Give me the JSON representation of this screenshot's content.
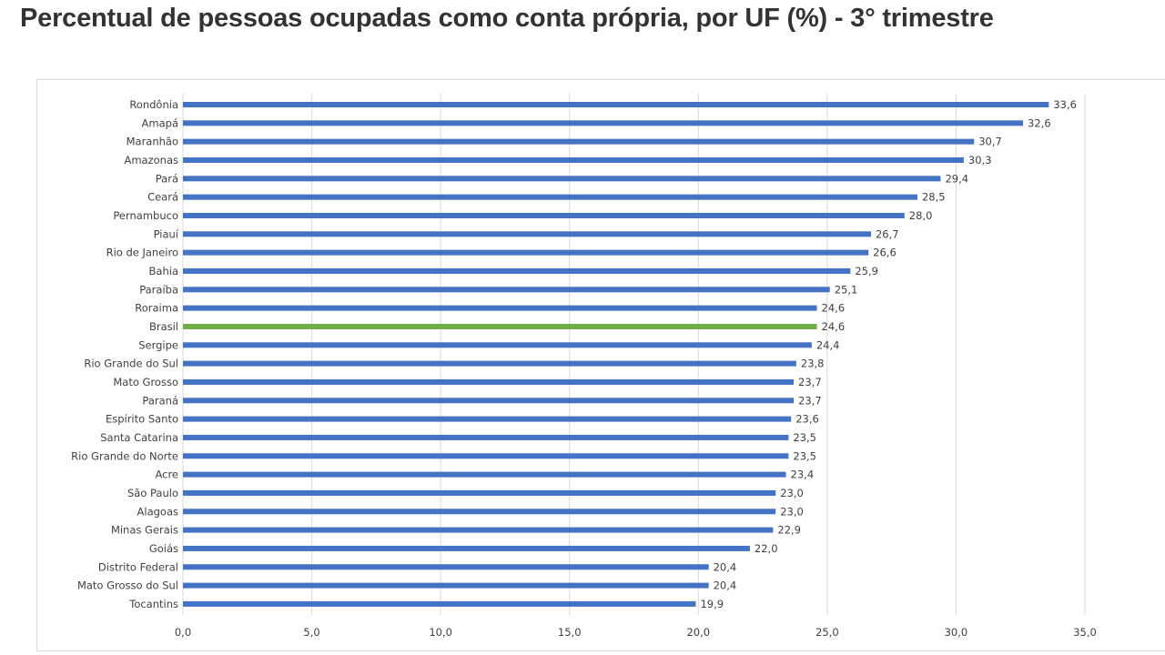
{
  "chart_data": {
    "type": "bar",
    "orientation": "horizontal",
    "title": "Percentual de pessoas ocupadas como conta própria, por UF (%) - 3° trimestre",
    "xlabel": "",
    "ylabel": "",
    "xlim": [
      0,
      35
    ],
    "xticks": [
      0,
      5,
      10,
      15,
      20,
      25,
      30,
      35
    ],
    "xtick_labels": [
      "0,0",
      "5,0",
      "10,0",
      "15,0",
      "20,0",
      "25,0",
      "30,0",
      "35,0"
    ],
    "grid": true,
    "categories": [
      "Rondônia",
      "Amapá",
      "Maranhão",
      "Amazonas",
      "Pará",
      "Ceará",
      "Pernambuco",
      "Piauí",
      "Rio de Janeiro",
      "Bahia",
      "Paraíba",
      "Roraima",
      "Brasil",
      "Sergipe",
      "Rio Grande do Sul",
      "Mato Grosso",
      "Paraná",
      "Espírito Santo",
      "Santa Catarina",
      "Rio Grande do Norte",
      "Acre",
      "São Paulo",
      "Alagoas",
      "Minas Gerais",
      "Goiás",
      "Distrito Federal",
      "Mato Grosso do Sul",
      "Tocantins"
    ],
    "values": [
      33.6,
      32.6,
      30.7,
      30.3,
      29.4,
      28.5,
      28.0,
      26.7,
      26.6,
      25.9,
      25.1,
      24.6,
      24.6,
      24.4,
      23.8,
      23.7,
      23.7,
      23.6,
      23.5,
      23.5,
      23.4,
      23.0,
      23.0,
      22.9,
      22.0,
      20.4,
      20.4,
      19.9
    ],
    "value_labels": [
      "33,6",
      "32,6",
      "30,7",
      "30,3",
      "29,4",
      "28,5",
      "28,0",
      "26,7",
      "26,6",
      "25,9",
      "25,1",
      "24,6",
      "24,6",
      "24,4",
      "23,8",
      "23,7",
      "23,7",
      "23,6",
      "23,5",
      "23,5",
      "23,4",
      "23,0",
      "23,0",
      "22,9",
      "22,0",
      "20,4",
      "20,4",
      "19,9"
    ],
    "highlight": "Brasil",
    "colors": {
      "bar": "#4472c4",
      "highlight": "#70ad47",
      "grid": "#d9d9d9"
    }
  }
}
